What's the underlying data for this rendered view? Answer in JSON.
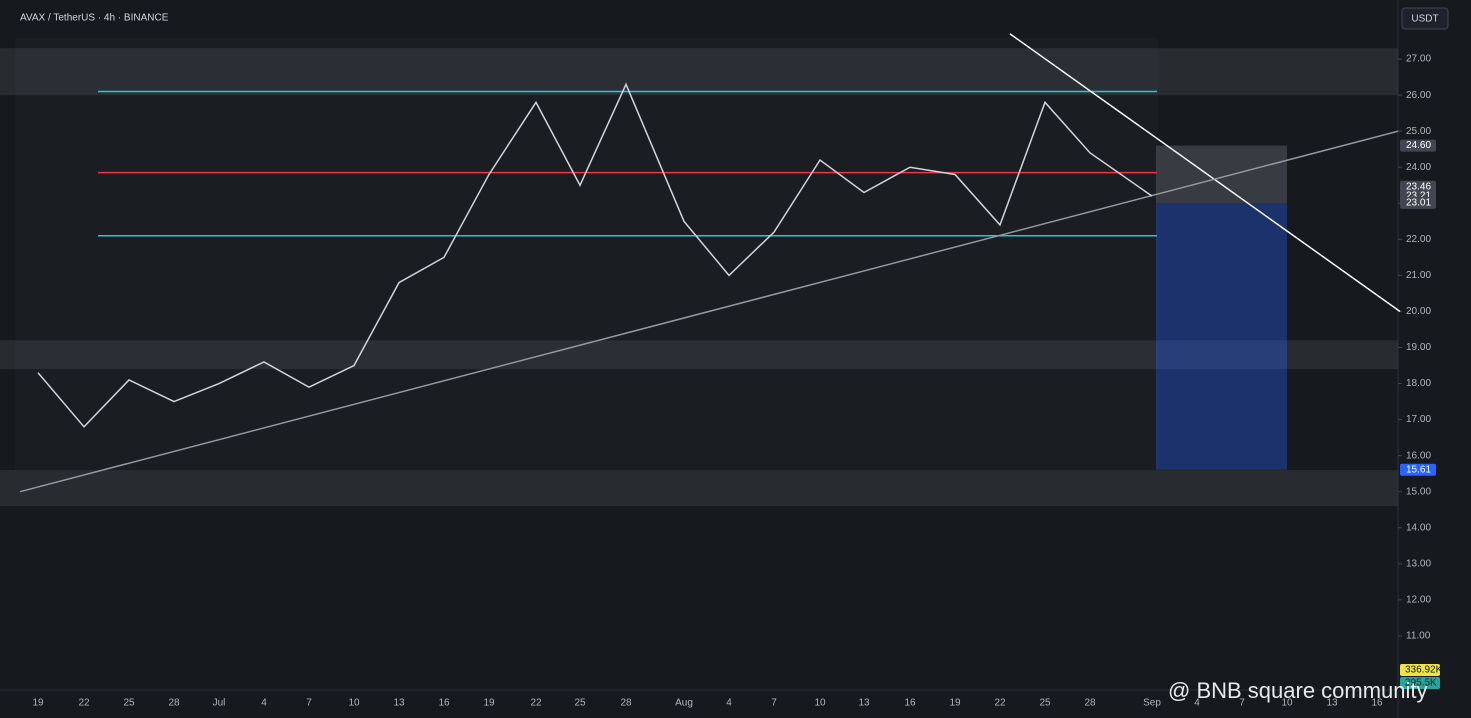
{
  "chart_data": {
    "type": "line",
    "title": "AVAX / TetherUS · 4h · BINANCE",
    "unit": "USDT",
    "watermark": "@ BNB square community",
    "categories": [
      "19",
      "22",
      "25",
      "28",
      "Jul",
      "4",
      "7",
      "10",
      "13",
      "16",
      "19",
      "22",
      "25",
      "28",
      "Aug",
      "4",
      "7",
      "10",
      "13",
      "16",
      "19",
      "22",
      "25",
      "28",
      "Sep",
      "4",
      "7",
      "10",
      "13",
      "16"
    ],
    "values": [
      18.3,
      16.8,
      18.1,
      17.5,
      18.0,
      18.6,
      17.9,
      18.5,
      20.8,
      21.5,
      23.8,
      25.8,
      23.5,
      26.3,
      22.5,
      21.0,
      22.2,
      24.2,
      23.3,
      24.0,
      23.8,
      22.4,
      25.8,
      24.4,
      23.2,
      null,
      null,
      null,
      null,
      null
    ],
    "color": "#d1d4dc",
    "ylim": [
      9.5,
      28.5
    ],
    "yticks": [
      {
        "value": 11,
        "label": "11.00"
      },
      {
        "value": 12,
        "label": "12.00"
      },
      {
        "value": 13,
        "label": "13.00"
      },
      {
        "value": 14,
        "label": "14.00"
      },
      {
        "value": 15,
        "label": "15.00"
      },
      {
        "value": 16,
        "label": "16.00"
      },
      {
        "value": 17,
        "label": "17.00"
      },
      {
        "value": 18,
        "label": "18.00"
      },
      {
        "value": 19,
        "label": "19.00"
      },
      {
        "value": 20,
        "label": "20.00"
      },
      {
        "value": 21,
        "label": "21.00"
      },
      {
        "value": 22,
        "label": "22.00"
      },
      {
        "value": 23,
        "label": "23.00"
      },
      {
        "value": 24,
        "label": "24.00"
      },
      {
        "value": 25,
        "label": "25.00"
      },
      {
        "value": 26,
        "label": "26.00"
      },
      {
        "value": 27,
        "label": "27.00"
      }
    ],
    "levels": [
      {
        "value": 26.1,
        "color": "#26c6da"
      },
      {
        "value": 23.85,
        "color": "#f23645"
      },
      {
        "value": 22.1,
        "color": "#26c6da"
      }
    ],
    "zones": [
      {
        "top": 27.3,
        "bottom": 26.0
      },
      {
        "top": 19.2,
        "bottom": 18.4
      },
      {
        "top": 15.6,
        "bottom": 14.6
      }
    ],
    "position": {
      "stop": 24.6,
      "entry": 23.0,
      "target": 15.61
    },
    "trendlines": [
      {
        "from": 27.7,
        "to": 20.0,
        "color": "#ffffff"
      },
      {
        "from": 15.0,
        "to": 25.0,
        "color": "#9598a1"
      }
    ],
    "price_labels": [
      {
        "value": 24.6,
        "label": "24.60",
        "color": "#434651"
      },
      {
        "value": 23.46,
        "label": "23.46",
        "color": "#434651"
      },
      {
        "value": 23.21,
        "label": "23.21",
        "color": "#434651"
      },
      {
        "value": 23.01,
        "label": "23.01",
        "color": "#434651"
      },
      {
        "value": 15.61,
        "label": "15.61",
        "color": "#2962ff"
      }
    ],
    "volume_labels": [
      {
        "label": "336.92K",
        "color": "#f0e442"
      },
      {
        "label": "295.5K",
        "color": "#26a69a"
      }
    ]
  }
}
